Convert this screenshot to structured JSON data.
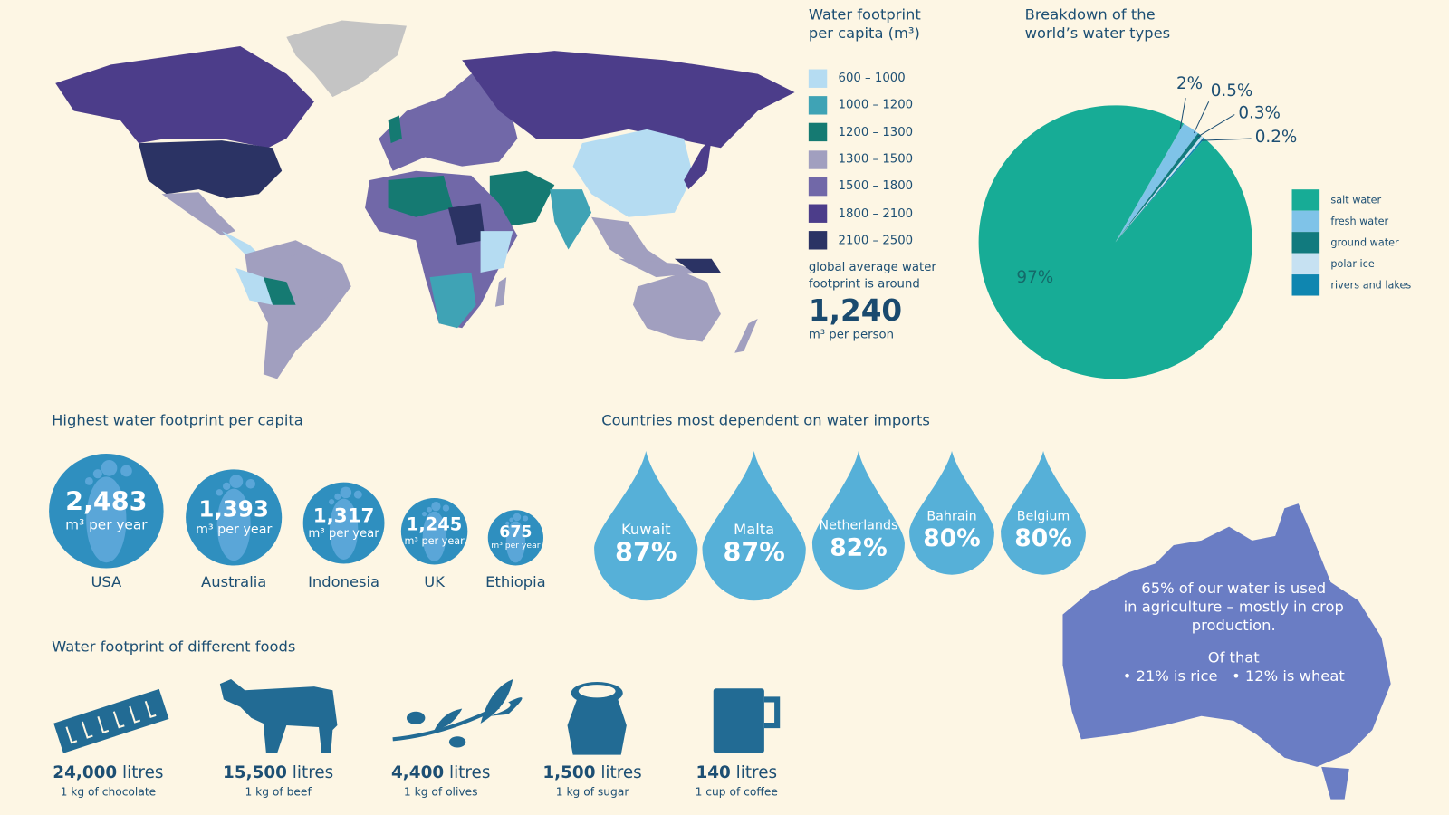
{
  "map_legend": {
    "title_line1": "Water footprint",
    "title_line2": "per capita (m³)",
    "items": [
      {
        "label": "600 – 1000",
        "color": "#b5dcf2"
      },
      {
        "label": "1000 – 1200",
        "color": "#3fa3b5"
      },
      {
        "label": "1200 – 1300",
        "color": "#157a72"
      },
      {
        "label": "1300 – 1500",
        "color": "#a19fbf"
      },
      {
        "label": "1500 – 1800",
        "color": "#7168a8"
      },
      {
        "label": "1800 – 2100",
        "color": "#4c3d8a"
      },
      {
        "label": "2100 – 2500",
        "color": "#2b3364"
      }
    ],
    "global_text_line1": "global average water",
    "global_text_line2": "footprint is around",
    "global_value": "1,240",
    "global_unit": "m³ per person"
  },
  "chart_data": {
    "type": "pie",
    "title_line1": "Breakdown of the",
    "title_line2": "world’s water types",
    "legend_position": "right",
    "slices": [
      {
        "name": "salt water",
        "value": 97,
        "label": "97%",
        "color": "#17ac96"
      },
      {
        "name": "fresh water",
        "value": 2,
        "label": "2%",
        "color": "#7fc3e8"
      },
      {
        "name": "ground water",
        "value": 0.5,
        "label": "0.5%",
        "color": "#117a7e"
      },
      {
        "name": "polar ice",
        "value": 0.3,
        "label": "0.3%",
        "color": "#c6e1f2"
      },
      {
        "name": "rivers and lakes",
        "value": 0.2,
        "label": "0.2%",
        "color": "#0f86b0"
      }
    ]
  },
  "highest": {
    "title": "Highest water footprint per capita",
    "unit": "m³ per year",
    "items": [
      {
        "country": "USA",
        "value": "2,483"
      },
      {
        "country": "Australia",
        "value": "1,393"
      },
      {
        "country": "Indonesia",
        "value": "1,317"
      },
      {
        "country": "UK",
        "value": "1,245"
      },
      {
        "country": "Ethiopia",
        "value": "675"
      }
    ]
  },
  "imports": {
    "title": "Countries most dependent on water imports",
    "items": [
      {
        "country": "Kuwait",
        "value": "87%"
      },
      {
        "country": "Malta",
        "value": "87%"
      },
      {
        "country": "Netherlands",
        "value": "82%"
      },
      {
        "country": "Bahrain",
        "value": "80%"
      },
      {
        "country": "Belgium",
        "value": "80%"
      }
    ]
  },
  "foods": {
    "title": "Water footprint of different foods",
    "unit": "litres",
    "items": [
      {
        "amount": "24,000",
        "desc": "1 kg of chocolate",
        "icon": "chocolate-bar-icon"
      },
      {
        "amount": "15,500",
        "desc": "1 kg of beef",
        "icon": "cow-icon"
      },
      {
        "amount": "4,400",
        "desc": "1 kg of olives",
        "icon": "olive-branch-icon"
      },
      {
        "amount": "1,500",
        "desc": "1 kg of sugar",
        "icon": "sugar-sack-icon"
      },
      {
        "amount": "140",
        "desc": "1 cup of coffee",
        "icon": "coffee-mug-icon"
      }
    ]
  },
  "agriculture": {
    "line1": "65% of our water is used",
    "line2": "in agriculture – mostly in crop",
    "line3": "production.",
    "line4": "Of that",
    "line5": "• 21% is rice   • 12% is wheat",
    "color": "#6a7dc4"
  }
}
